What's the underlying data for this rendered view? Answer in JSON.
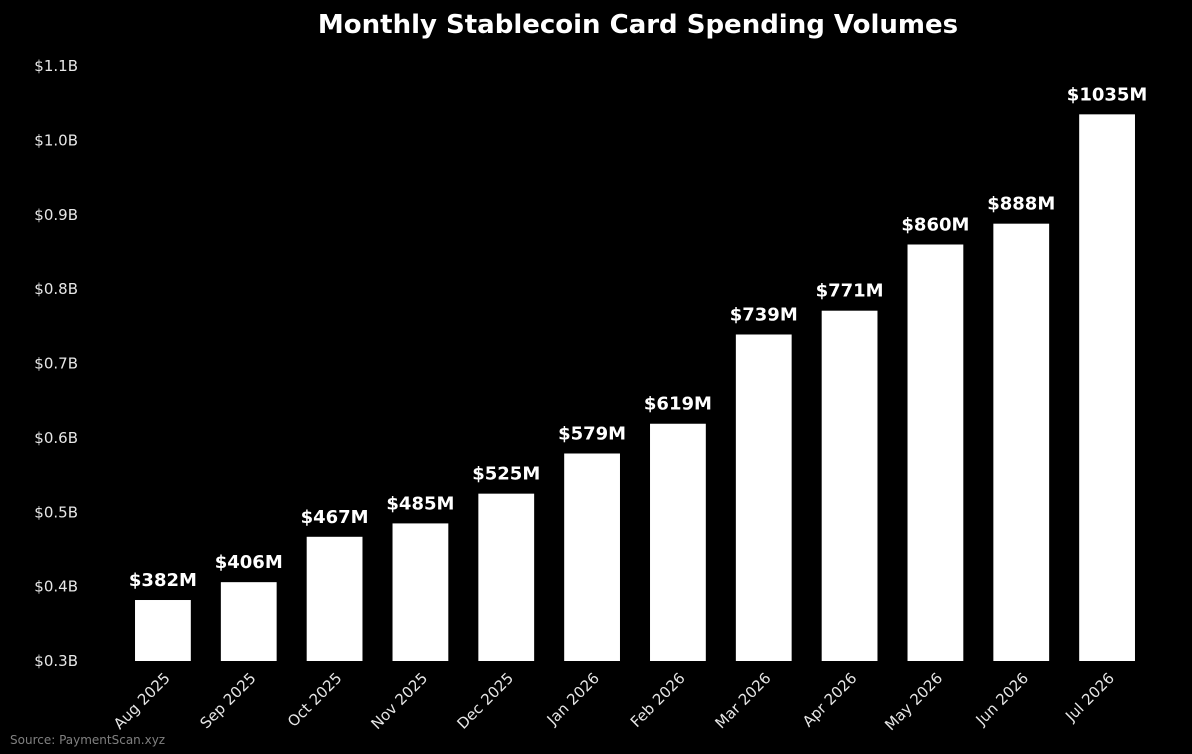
{
  "chart_data": {
    "type": "bar",
    "title": "Monthly Stablecoin Card Spending Volumes",
    "categories": [
      "Aug 2025",
      "Sep 2025",
      "Oct 2025",
      "Nov 2025",
      "Dec 2025",
      "Jan 2026",
      "Feb 2026",
      "Mar 2026",
      "Apr 2026",
      "May 2026",
      "Jun 2026",
      "Jul 2026"
    ],
    "values": [
      382,
      406,
      467,
      485,
      525,
      579,
      619,
      739,
      771,
      860,
      888,
      1035
    ],
    "value_unit": "$M",
    "data_labels": [
      "$382M",
      "$406M",
      "$467M",
      "$485M",
      "$525M",
      "$579M",
      "$619M",
      "$739M",
      "$771M",
      "$860M",
      "$888M",
      "$1035M"
    ],
    "ylim": [
      300,
      1100
    ],
    "yticks": [
      300,
      400,
      500,
      600,
      700,
      800,
      900,
      1000,
      1100
    ],
    "ytick_labels": [
      "$0.3B",
      "$0.4B",
      "$0.5B",
      "$0.6B",
      "$0.7B",
      "$0.8B",
      "$0.9B",
      "$1.0B",
      "$1.1B"
    ],
    "xlabel": "",
    "ylabel": "",
    "grid": false,
    "legend": "none",
    "bar_color": "#ffffff",
    "background_color": "#000000",
    "source": "Source: PaymentScan.xyz"
  }
}
